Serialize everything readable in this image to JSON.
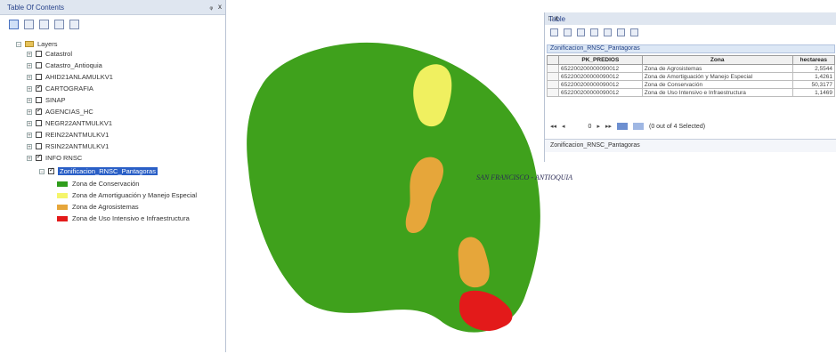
{
  "toc": {
    "title": "Table Of Contents",
    "pin": "ᵩ",
    "close": "x",
    "layers_label": "Layers",
    "layers": [
      {
        "label": "Catastrol",
        "checked": false
      },
      {
        "label": "Catastro_Antioquia",
        "checked": false
      },
      {
        "label": "AHID21ANLAMULKV1",
        "checked": false
      },
      {
        "label": "CARTOGRAFIA",
        "checked": true
      },
      {
        "label": "SINAP",
        "checked": false
      },
      {
        "label": "AGENCIAS_HC",
        "checked": true
      },
      {
        "label": "NEGR22ANTMULKV1",
        "checked": false
      },
      {
        "label": "REIN22ANTMULKV1",
        "checked": false
      },
      {
        "label": "RSIN22ANTMULKV1",
        "checked": false
      },
      {
        "label": "INFO RNSC",
        "checked": true
      }
    ],
    "selected_layer": "Zonificacion_RNSC_Pantagoras",
    "legend": [
      {
        "label": "Zona de Conservación",
        "color": "#2f9d1c"
      },
      {
        "label": "Zona de Amortiguación y Manejo Especial",
        "color": "#f5f56a"
      },
      {
        "label": "Zona de Agrosistemas",
        "color": "#e6a63a"
      },
      {
        "label": "Zona de Uso Intensivo e Infraestructura",
        "color": "#e31a1a"
      }
    ]
  },
  "map": {
    "label": "SAN FRANCISCO - ANTIOQUIA",
    "colors": {
      "conservacion": "#3fa11c",
      "amortiguacion": "#f0f060",
      "agrosistemas": "#e6a63a",
      "intensivo": "#e31a1a"
    }
  },
  "table": {
    "title": "Table",
    "close": "□ x",
    "tab_label": "Zonificacion_RNSC_Pantagoras",
    "columns": [
      "PK_PREDIOS",
      "Zona",
      "hectareas"
    ],
    "rows": [
      [
        "652200200000090012",
        "Zona de Agrosistemas",
        "2,5544"
      ],
      [
        "652200200000090012",
        "Zona de Amortiguación y Manejo Especial",
        "1,4261"
      ],
      [
        "652200200000090012",
        "Zona de Conservación",
        "50,3177"
      ],
      [
        "652200200000090012",
        "Zona de Uso Intensivo e Infraestructura",
        "1,1469"
      ]
    ],
    "nav_record": "0",
    "selection_status": "(0 out of 4 Selected)",
    "footer_tab": "Zonificacion_RNSC_Pantagoras"
  }
}
